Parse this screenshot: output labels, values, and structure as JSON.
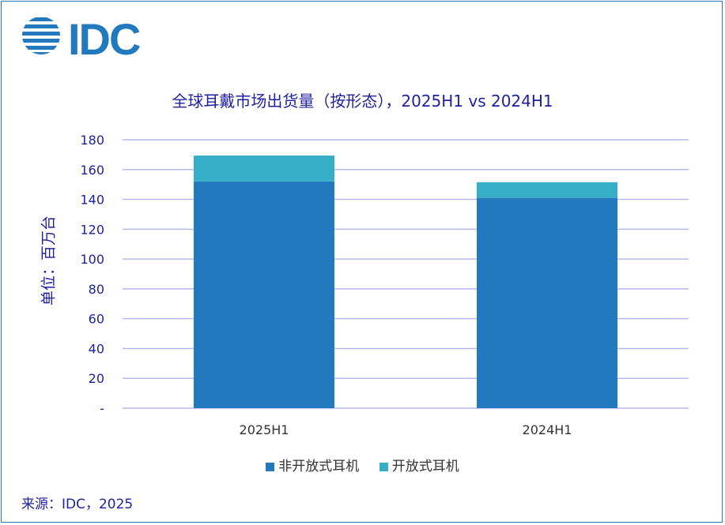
{
  "logo_text": "IDC",
  "chart_data": {
    "type": "bar",
    "stacked": true,
    "title": "全球耳戴市场出货量（按形态），2025H1 vs 2024H1",
    "ylabel": "单位：百万台",
    "categories": [
      "2025H1",
      "2024H1"
    ],
    "series": [
      {
        "name": "非开放式耳机",
        "values": [
          152,
          141
        ],
        "color": "#2279BD"
      },
      {
        "name": "开放式耳机",
        "values": [
          17.4,
          10.5
        ],
        "color": "#37AEC8"
      }
    ],
    "ylim": [
      0,
      180
    ],
    "yticks": [
      0,
      20,
      40,
      60,
      80,
      100,
      120,
      140,
      160,
      180
    ],
    "ytick_labels": [
      "-",
      "20",
      "40",
      "60",
      "80",
      "100",
      "120",
      "140",
      "160",
      "180"
    ],
    "grid": true,
    "grid_color": "#B8B8F2",
    "legend_position": "bottom"
  },
  "source": "来源：IDC，2025"
}
